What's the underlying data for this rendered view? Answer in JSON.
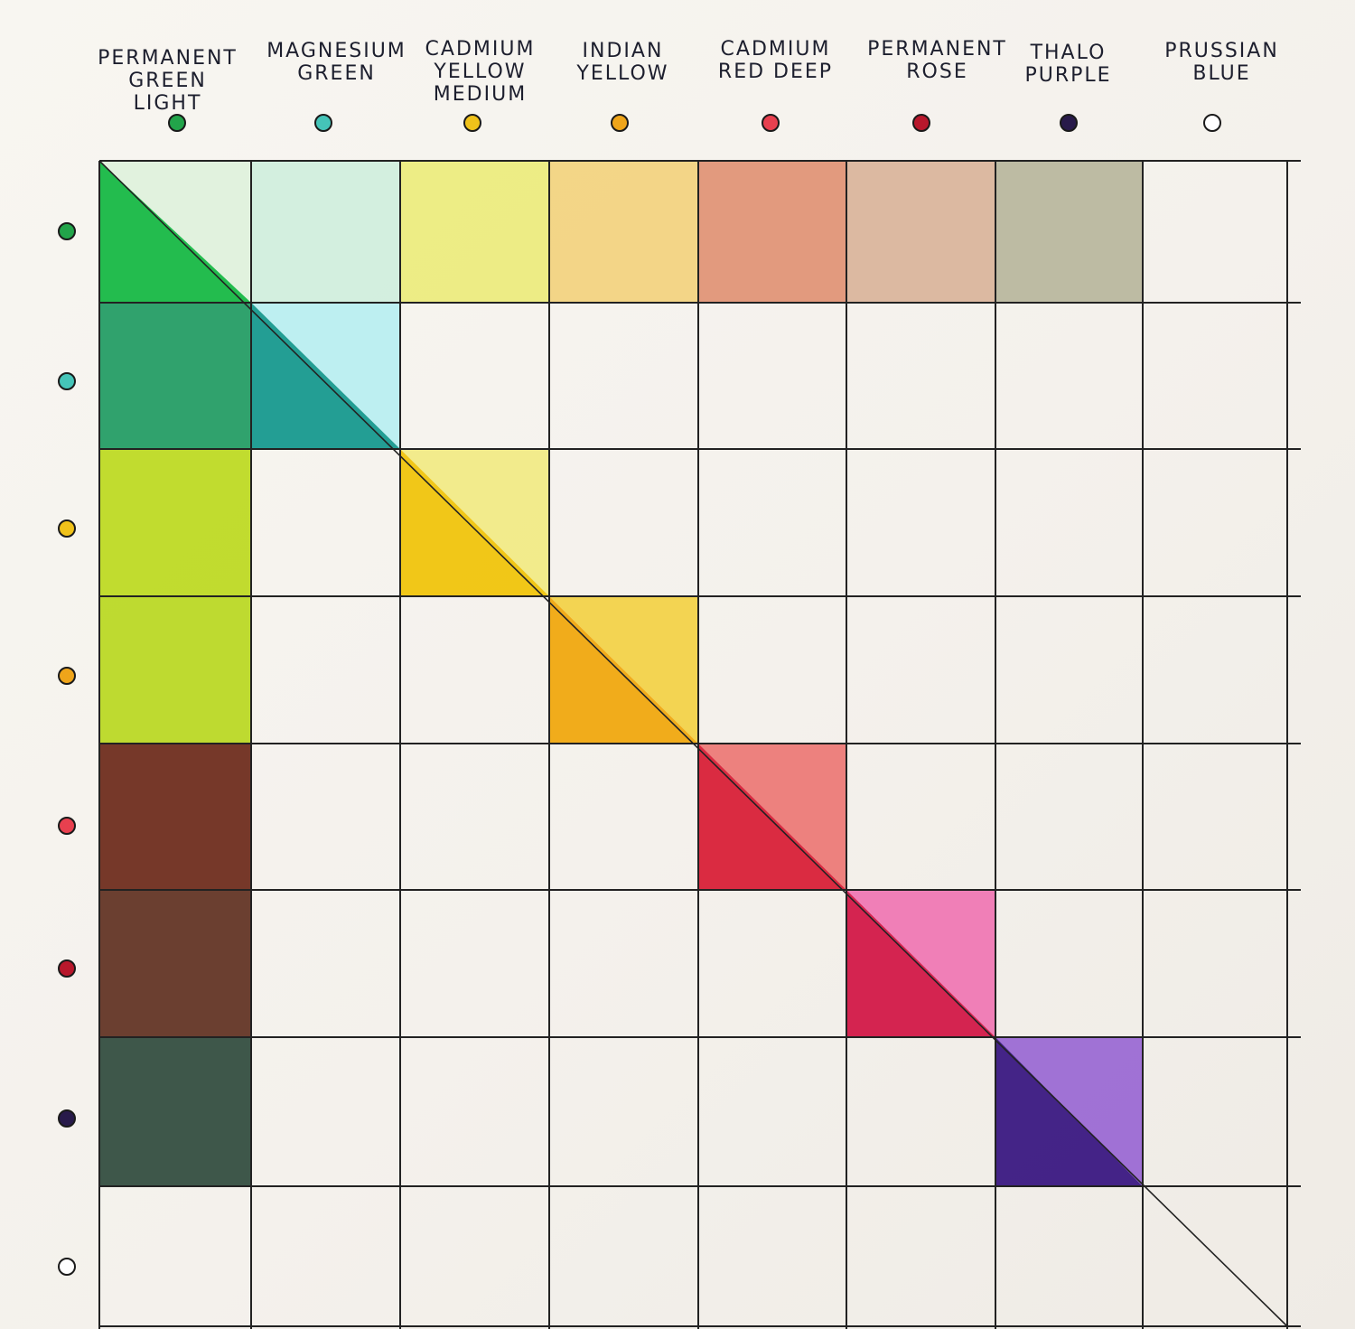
{
  "columns": [
    {
      "label": "PERMANENT\nGREEN LIGHT",
      "color": "#22a44a"
    },
    {
      "label": "MAGNESIUM\nGREEN",
      "color": "#45c4b8"
    },
    {
      "label": "CADMIUM\nYELLOW\nMEDIUM",
      "color": "#f0c21a"
    },
    {
      "label": "INDIAN\nYELLOW",
      "color": "#efa51a"
    },
    {
      "label": "CADMIUM\nRED DEEP",
      "color": "#e8404f"
    },
    {
      "label": "PERMANENT\nROSE",
      "color": "#b8182c"
    },
    {
      "label": "THALO\nPURPLE",
      "color": "#281a4a"
    },
    {
      "label": "PRUSSIAN\nBLUE",
      "color": "#ffffff"
    }
  ],
  "swatch_colors": {
    "row0": [
      "#17b845",
      "#cfeedd",
      "#ecec7c",
      "#f2d27e",
      "#df9374",
      "#d9b49a",
      "#b7b69c"
    ],
    "diag_light": [
      "#dff1dc",
      "#b9eef0",
      "#f1ea86",
      "#f2d24a",
      "#ec7a78",
      "#ef78b4",
      "#9b6ad4"
    ],
    "diag_dark": [
      "#17b845",
      "#17998e",
      "#f0c40c",
      "#f0a810",
      "#d82038",
      "#d21848",
      "#3a1882"
    ],
    "col0": [
      "#17b845",
      "#1e9a62",
      "#bcd91e",
      "#b9d820",
      "#6a2818",
      "#5e3020",
      "#2e4a3c"
    ]
  }
}
